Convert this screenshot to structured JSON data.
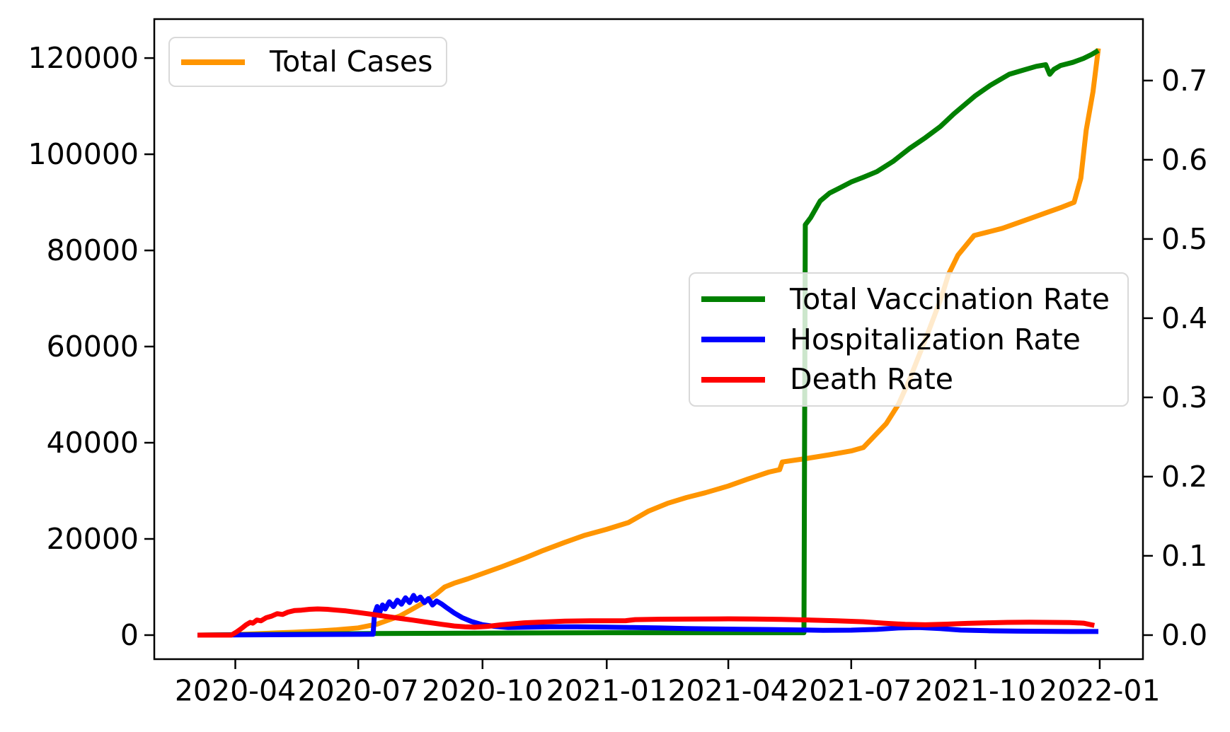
{
  "chart_data": {
    "type": "line",
    "title": "",
    "grid": false,
    "background_color": "#ffffff",
    "x_axis": {
      "domain": [
        "2020-02-01",
        "2022-02-02"
      ],
      "ticks": [
        {
          "date": "2020-04-01",
          "label": "2020-04"
        },
        {
          "date": "2020-07-01",
          "label": "2020-07"
        },
        {
          "date": "2020-10-01",
          "label": "2020-10"
        },
        {
          "date": "2021-01-01",
          "label": "2021-01"
        },
        {
          "date": "2021-04-01",
          "label": "2021-04"
        },
        {
          "date": "2021-07-01",
          "label": "2021-07"
        },
        {
          "date": "2021-10-01",
          "label": "2021-10"
        },
        {
          "date": "2022-01-01",
          "label": "2022-01"
        }
      ]
    },
    "left_axis": {
      "range": [
        -5000,
        128100
      ],
      "ticks": [
        {
          "v": 0,
          "label": "0"
        },
        {
          "v": 20000,
          "label": "20000"
        },
        {
          "v": 40000,
          "label": "40000"
        },
        {
          "v": 60000,
          "label": "60000"
        },
        {
          "v": 80000,
          "label": "80000"
        },
        {
          "v": 100000,
          "label": "100000"
        },
        {
          "v": 120000,
          "label": "120000"
        }
      ]
    },
    "right_axis": {
      "range": [
        -0.0304,
        0.7776
      ],
      "ticks": [
        {
          "v": 0.0,
          "label": "0.0"
        },
        {
          "v": 0.1,
          "label": "0.1"
        },
        {
          "v": 0.2,
          "label": "0.2"
        },
        {
          "v": 0.3,
          "label": "0.3"
        },
        {
          "v": 0.4,
          "label": "0.4"
        },
        {
          "v": 0.5,
          "label": "0.5"
        },
        {
          "v": 0.6,
          "label": "0.6"
        },
        {
          "v": 0.7,
          "label": "0.7"
        }
      ]
    },
    "legend_cases_entries": [
      "Total Cases"
    ],
    "legend_rates_entries": [
      "Total Vaccination Rate",
      "Hospitalization Rate",
      "Death Rate"
    ],
    "series": [
      {
        "name": "Total Cases",
        "color": "#ff9500",
        "axis": "left",
        "points": [
          [
            "2020-03-04",
            0
          ],
          [
            "2020-03-20",
            30
          ],
          [
            "2020-04-01",
            120
          ],
          [
            "2020-04-15",
            250
          ],
          [
            "2020-05-01",
            450
          ],
          [
            "2020-05-15",
            600
          ],
          [
            "2020-06-01",
            850
          ],
          [
            "2020-06-15",
            1100
          ],
          [
            "2020-07-01",
            1500
          ],
          [
            "2020-07-15",
            2300
          ],
          [
            "2020-08-01",
            4000
          ],
          [
            "2020-08-10",
            5400
          ],
          [
            "2020-08-20",
            7000
          ],
          [
            "2020-08-28",
            8600
          ],
          [
            "2020-09-03",
            10000
          ],
          [
            "2020-09-10",
            10800
          ],
          [
            "2020-09-20",
            11700
          ],
          [
            "2020-10-01",
            12800
          ],
          [
            "2020-10-15",
            14200
          ],
          [
            "2020-11-01",
            16000
          ],
          [
            "2020-11-15",
            17600
          ],
          [
            "2020-12-01",
            19300
          ],
          [
            "2020-12-15",
            20700
          ],
          [
            "2021-01-01",
            22000
          ],
          [
            "2021-01-17",
            23400
          ],
          [
            "2021-02-01",
            25800
          ],
          [
            "2021-02-15",
            27400
          ],
          [
            "2021-03-01",
            28600
          ],
          [
            "2021-03-15",
            29600
          ],
          [
            "2021-04-01",
            31000
          ],
          [
            "2021-04-15",
            32400
          ],
          [
            "2021-05-01",
            33900
          ],
          [
            "2021-05-09",
            34400
          ],
          [
            "2021-05-11",
            36000
          ],
          [
            "2021-05-28",
            36700
          ],
          [
            "2021-06-15",
            37500
          ],
          [
            "2021-07-01",
            38300
          ],
          [
            "2021-07-10",
            39000
          ],
          [
            "2021-07-27",
            44000
          ],
          [
            "2021-08-05",
            48000
          ],
          [
            "2021-08-13",
            53000
          ],
          [
            "2021-08-20",
            58000
          ],
          [
            "2021-08-27",
            63000
          ],
          [
            "2021-09-06",
            70400
          ],
          [
            "2021-09-11",
            75000
          ],
          [
            "2021-09-18",
            79000
          ],
          [
            "2021-09-30",
            83100
          ],
          [
            "2021-10-10",
            83800
          ],
          [
            "2021-10-21",
            84600
          ],
          [
            "2021-11-09",
            86500
          ],
          [
            "2021-11-24",
            88000
          ],
          [
            "2021-12-04",
            89000
          ],
          [
            "2021-12-13",
            90000
          ],
          [
            "2021-12-18",
            95000
          ],
          [
            "2021-12-22",
            105000
          ],
          [
            "2021-12-27",
            113000
          ],
          [
            "2021-12-31",
            122000
          ]
        ]
      },
      {
        "name": "Total Vaccination Rate",
        "color": "#008000",
        "axis": "right",
        "points": [
          [
            "2020-03-04",
            0
          ],
          [
            "2020-07-13",
            0.002
          ],
          [
            "2021-01-01",
            0.003
          ],
          [
            "2021-05-27",
            0.003
          ],
          [
            "2021-05-28",
            0.518
          ],
          [
            "2021-06-01",
            0.527
          ],
          [
            "2021-06-08",
            0.548
          ],
          [
            "2021-06-15",
            0.558
          ],
          [
            "2021-06-22",
            0.564
          ],
          [
            "2021-07-01",
            0.572
          ],
          [
            "2021-07-10",
            0.578
          ],
          [
            "2021-07-20",
            0.585
          ],
          [
            "2021-08-01",
            0.598
          ],
          [
            "2021-08-13",
            0.614
          ],
          [
            "2021-08-25",
            0.628
          ],
          [
            "2021-09-05",
            0.642
          ],
          [
            "2021-09-15",
            0.658
          ],
          [
            "2021-10-01",
            0.681
          ],
          [
            "2021-10-12",
            0.694
          ],
          [
            "2021-10-26",
            0.708
          ],
          [
            "2021-11-05",
            0.713
          ],
          [
            "2021-11-15",
            0.718
          ],
          [
            "2021-11-22",
            0.72
          ],
          [
            "2021-11-25",
            0.708
          ],
          [
            "2021-11-28",
            0.714
          ],
          [
            "2021-12-03",
            0.719
          ],
          [
            "2021-12-12",
            0.723
          ],
          [
            "2021-12-20",
            0.728
          ],
          [
            "2021-12-26",
            0.733
          ],
          [
            "2021-12-31",
            0.738
          ]
        ]
      },
      {
        "name": "Hospitalization Rate",
        "color": "#0000ff",
        "axis": "right",
        "points": [
          [
            "2020-03-04",
            0
          ],
          [
            "2020-07-12",
            0.001
          ],
          [
            "2020-07-13",
            0.026
          ],
          [
            "2020-07-15",
            0.036
          ],
          [
            "2020-07-17",
            0.029
          ],
          [
            "2020-07-19",
            0.038
          ],
          [
            "2020-07-21",
            0.033
          ],
          [
            "2020-07-24",
            0.042
          ],
          [
            "2020-07-27",
            0.036
          ],
          [
            "2020-07-30",
            0.044
          ],
          [
            "2020-08-02",
            0.039
          ],
          [
            "2020-08-05",
            0.047
          ],
          [
            "2020-08-08",
            0.041
          ],
          [
            "2020-08-11",
            0.05
          ],
          [
            "2020-08-13",
            0.044
          ],
          [
            "2020-08-16",
            0.048
          ],
          [
            "2020-08-19",
            0.041
          ],
          [
            "2020-08-22",
            0.046
          ],
          [
            "2020-08-25",
            0.038
          ],
          [
            "2020-08-28",
            0.043
          ],
          [
            "2020-09-01",
            0.039
          ],
          [
            "2020-09-05",
            0.034
          ],
          [
            "2020-09-10",
            0.028
          ],
          [
            "2020-09-16",
            0.022
          ],
          [
            "2020-09-23",
            0.017
          ],
          [
            "2020-10-01",
            0.013
          ],
          [
            "2020-10-10",
            0.011
          ],
          [
            "2020-10-20",
            0.0095
          ],
          [
            "2020-11-05",
            0.01
          ],
          [
            "2020-11-20",
            0.0105
          ],
          [
            "2020-12-10",
            0.0105
          ],
          [
            "2021-01-01",
            0.01
          ],
          [
            "2021-01-20",
            0.0095
          ],
          [
            "2021-02-10",
            0.009
          ],
          [
            "2021-03-01",
            0.0082
          ],
          [
            "2021-03-20",
            0.0078
          ],
          [
            "2021-04-10",
            0.0074
          ],
          [
            "2021-05-01",
            0.007
          ],
          [
            "2021-05-20",
            0.0066
          ],
          [
            "2021-06-10",
            0.006
          ],
          [
            "2021-07-01",
            0.0062
          ],
          [
            "2021-07-20",
            0.0072
          ],
          [
            "2021-08-05",
            0.009
          ],
          [
            "2021-08-20",
            0.0095
          ],
          [
            "2021-09-05",
            0.0082
          ],
          [
            "2021-09-20",
            0.0063
          ],
          [
            "2021-10-10",
            0.0055
          ],
          [
            "2021-11-01",
            0.005
          ],
          [
            "2021-11-20",
            0.0048
          ],
          [
            "2021-12-10",
            0.0045
          ],
          [
            "2021-12-31",
            0.0045
          ]
        ]
      },
      {
        "name": "Death Rate",
        "color": "#ff0000",
        "axis": "right",
        "points": [
          [
            "2020-03-04",
            0
          ],
          [
            "2020-03-29",
            0
          ],
          [
            "2020-04-02",
            0.004
          ],
          [
            "2020-04-06",
            0.009
          ],
          [
            "2020-04-09",
            0.013
          ],
          [
            "2020-04-12",
            0.016
          ],
          [
            "2020-04-14",
            0.015
          ],
          [
            "2020-04-17",
            0.019
          ],
          [
            "2020-04-20",
            0.018
          ],
          [
            "2020-04-24",
            0.022
          ],
          [
            "2020-04-28",
            0.024
          ],
          [
            "2020-05-02",
            0.027
          ],
          [
            "2020-05-06",
            0.026
          ],
          [
            "2020-05-10",
            0.029
          ],
          [
            "2020-05-15",
            0.031
          ],
          [
            "2020-05-20",
            0.0315
          ],
          [
            "2020-05-26",
            0.0325
          ],
          [
            "2020-06-01",
            0.033
          ],
          [
            "2020-06-08",
            0.0325
          ],
          [
            "2020-06-15",
            0.0315
          ],
          [
            "2020-06-22",
            0.0305
          ],
          [
            "2020-07-01",
            0.0285
          ],
          [
            "2020-07-10",
            0.0265
          ],
          [
            "2020-07-20",
            0.024
          ],
          [
            "2020-08-01",
            0.021
          ],
          [
            "2020-08-10",
            0.019
          ],
          [
            "2020-08-20",
            0.0165
          ],
          [
            "2020-09-01",
            0.0135
          ],
          [
            "2020-09-10",
            0.0115
          ],
          [
            "2020-09-18",
            0.0105
          ],
          [
            "2020-09-25",
            0.01
          ],
          [
            "2020-10-05",
            0.011
          ],
          [
            "2020-10-15",
            0.013
          ],
          [
            "2020-11-01",
            0.0155
          ],
          [
            "2020-11-15",
            0.0165
          ],
          [
            "2020-12-01",
            0.0175
          ],
          [
            "2020-12-20",
            0.018
          ],
          [
            "2021-01-15",
            0.0182
          ],
          [
            "2021-01-22",
            0.0195
          ],
          [
            "2021-02-10",
            0.02
          ],
          [
            "2021-03-10",
            0.0202
          ],
          [
            "2021-04-01",
            0.0205
          ],
          [
            "2021-04-20",
            0.0203
          ],
          [
            "2021-05-10",
            0.0198
          ],
          [
            "2021-06-01",
            0.019
          ],
          [
            "2021-06-20",
            0.018
          ],
          [
            "2021-07-10",
            0.0168
          ],
          [
            "2021-07-25",
            0.015
          ],
          [
            "2021-08-10",
            0.0135
          ],
          [
            "2021-08-25",
            0.013
          ],
          [
            "2021-09-10",
            0.0138
          ],
          [
            "2021-09-25",
            0.0148
          ],
          [
            "2021-10-10",
            0.0155
          ],
          [
            "2021-10-25",
            0.016
          ],
          [
            "2021-11-10",
            0.0162
          ],
          [
            "2021-11-25",
            0.016
          ],
          [
            "2021-12-10",
            0.0158
          ],
          [
            "2021-12-20",
            0.015
          ],
          [
            "2021-12-28",
            0.0122
          ]
        ]
      }
    ]
  }
}
